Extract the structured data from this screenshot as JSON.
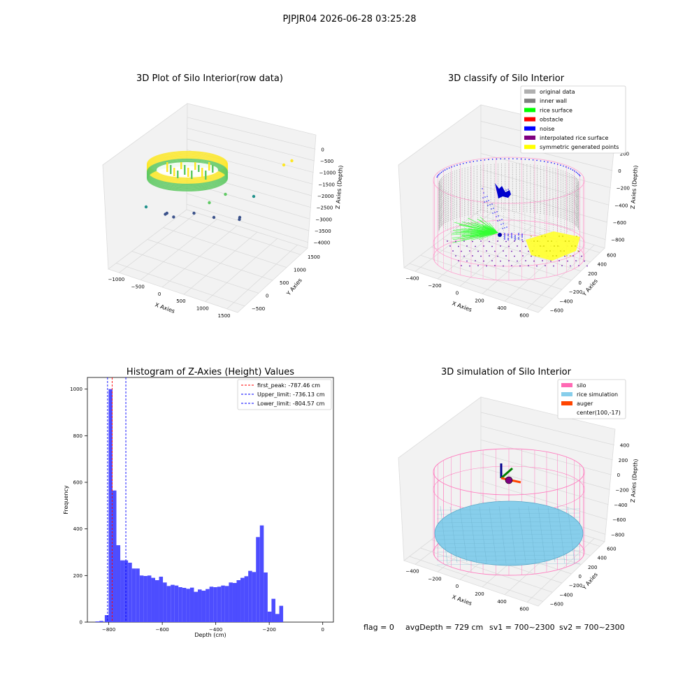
{
  "figure": {
    "suptitle": "PJPJR04 2026-06-28 03:25:28",
    "footer": {
      "flag": "flag = 0",
      "avg_depth": "avgDepth = 729 cm",
      "sv1": "sv1 = 700~2300",
      "sv2": "sv2 = 700~2300"
    }
  },
  "chart_data": [
    {
      "type": "scatter",
      "projection": "3d",
      "title": "3D Plot of Silo Interior(row data)",
      "xlabel": "X Axies",
      "ylabel": "Y Axies",
      "zlabel": "Z Axies (Depth)",
      "xticks": [
        "−1000",
        "−500",
        "0",
        "500",
        "1000",
        "1500"
      ],
      "yticks": [
        "−500",
        "0",
        "500",
        "1000",
        "1500"
      ],
      "zticks": [
        "0",
        "−500",
        "−1000",
        "−1500",
        "−2000",
        "−2500",
        "−3000",
        "−3500",
        "−4000"
      ],
      "colormap": [
        "#440154",
        "#3b528b",
        "#21918c",
        "#5ec962",
        "#fde725"
      ],
      "outlier_points": [
        {
          "x": -520,
          "y": 820,
          "z": -3500
        },
        {
          "x": -600,
          "y": 650,
          "z": -3200
        },
        {
          "x": -520,
          "y": 500,
          "z": -3000
        },
        {
          "x": -100,
          "y": 600,
          "z": -3100
        },
        {
          "x": 200,
          "y": 700,
          "z": -3400
        },
        {
          "x": 600,
          "y": 800,
          "z": -3500
        },
        {
          "x": 700,
          "y": 500,
          "z": -3300
        },
        {
          "x": 800,
          "y": 900,
          "z": -2600
        },
        {
          "x": 1200,
          "y": 1200,
          "z": -1400
        },
        {
          "x": 1300,
          "y": 1300,
          "z": -1300
        },
        {
          "x": 300,
          "y": 200,
          "z": -2200
        },
        {
          "x": 500,
          "y": 400,
          "z": -2000
        },
        {
          "x": -800,
          "y": 300,
          "z": -2500
        }
      ]
    },
    {
      "type": "scatter",
      "projection": "3d",
      "title": "3D classify of Silo Interior",
      "xlabel": "X Axies",
      "ylabel": "Y Axies",
      "zlabel": "Z Axies (Depth)",
      "xticks": [
        "−400",
        "−200",
        "0",
        "200",
        "400",
        "600"
      ],
      "yticks": [
        "−600",
        "−400",
        "−200",
        "0",
        "200",
        "400",
        "600"
      ],
      "zticks": [
        "200",
        "0",
        "−200",
        "−400",
        "−600",
        "−800"
      ],
      "legend": [
        {
          "label": "original data",
          "color": "#b0b0b0"
        },
        {
          "label": "inner wall",
          "color": "#808080"
        },
        {
          "label": "rice surface",
          "color": "#00ff00"
        },
        {
          "label": "obstacle",
          "color": "#ff0000"
        },
        {
          "label": "noise",
          "color": "#0000ff"
        },
        {
          "label": "interpolated rice surface",
          "color": "#800080"
        },
        {
          "label": "symmetric generated points",
          "color": "#ffff00"
        }
      ],
      "legend_loc": "upper right"
    },
    {
      "type": "histogram",
      "title": "Histogram of Z-Axies (Height) Values",
      "xlabel": "Depth (cm)",
      "ylabel": "Frequency",
      "xlim": [
        -880,
        40
      ],
      "ylim": [
        0,
        1050
      ],
      "xticks": [
        "−800",
        "−600",
        "−400",
        "−200",
        "0"
      ],
      "yticks": [
        "0",
        "200",
        "400",
        "600",
        "800",
        "1000"
      ],
      "bin_width": 14.5,
      "bin_start": -815,
      "bar_color": "#4d4dff",
      "counts": [
        30,
        1000,
        565,
        330,
        265,
        265,
        255,
        230,
        230,
        200,
        198,
        200,
        190,
        180,
        195,
        170,
        155,
        160,
        157,
        150,
        147,
        143,
        148,
        130,
        140,
        135,
        142,
        152,
        150,
        152,
        157,
        155,
        170,
        168,
        180,
        190,
        197,
        220,
        215,
        365,
        415,
        213,
        45,
        100,
        35,
        70
      ],
      "low_bins": [
        {
          "x": -850,
          "count": 3
        },
        {
          "x": -835,
          "count": 5
        }
      ],
      "vlines": [
        {
          "label": "first_peak: -787.46 cm",
          "x": -787.46,
          "color": "#ff0000"
        },
        {
          "label": "Upper_limit: -736.13 cm",
          "x": -736.13,
          "color": "#0000ff"
        },
        {
          "label": "Lower_limit: -804.57 cm",
          "x": -804.57,
          "color": "#0000ff"
        }
      ],
      "legend_loc": "upper right"
    },
    {
      "type": "surface",
      "projection": "3d",
      "title": "3D simulation of Silo Interior",
      "xlabel": "X Axies",
      "ylabel": "Y Axies",
      "zlabel": "Z Axies (Depth)",
      "xticks": [
        "−400",
        "−200",
        "0",
        "200",
        "400",
        "600"
      ],
      "yticks": [
        "−600",
        "−400",
        "−200",
        "0",
        "200",
        "400",
        "600"
      ],
      "zticks": [
        "400",
        "200",
        "0",
        "−200",
        "−400",
        "−600",
        "−800"
      ],
      "legend": [
        {
          "label": "silo",
          "color": "#ff69b4"
        },
        {
          "label": "rice simulation",
          "color": "#87ceeb"
        },
        {
          "label": "auger",
          "color": "#ff4500"
        },
        {
          "label": "center(100,-17)",
          "color": ""
        }
      ],
      "legend_loc": "upper right"
    }
  ]
}
